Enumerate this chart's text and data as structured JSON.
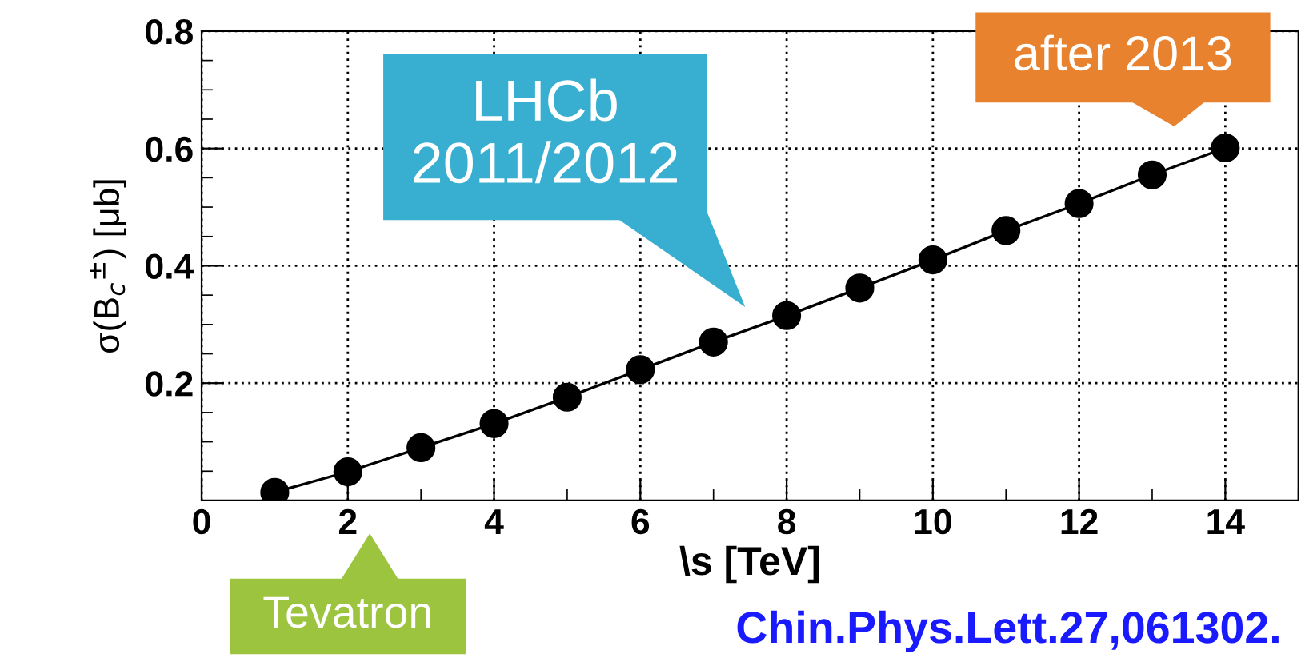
{
  "chart_data": {
    "type": "line",
    "xlabel": "\\s [TeV]",
    "ylabel": "σ(B$_{c}$$^{±}$) [μb]",
    "x": [
      1,
      2,
      3,
      4,
      5,
      6,
      7,
      8,
      9,
      10,
      11,
      12,
      13,
      14
    ],
    "series": [
      {
        "color": "#000000",
        "values": [
          0.014,
          0.049,
          0.09,
          0.131,
          0.176,
          0.223,
          0.27,
          0.315,
          0.362,
          0.41,
          0.46,
          0.506,
          0.555,
          0.601
        ]
      }
    ],
    "marker": "circle",
    "line_style": "solid",
    "xlim": [
      0,
      15
    ],
    "xticks": [
      0,
      2,
      4,
      6,
      8,
      10,
      12,
      14
    ],
    "ylim": [
      0,
      0.8
    ],
    "yticks": [
      0.2,
      0.4,
      0.6,
      0.8
    ],
    "grid": true,
    "legend": false,
    "annotations": [
      "LHCb\n2011/2012",
      "after 2013",
      "Tevatron",
      "Chin.Phys.Lett.27,061302."
    ]
  }
}
